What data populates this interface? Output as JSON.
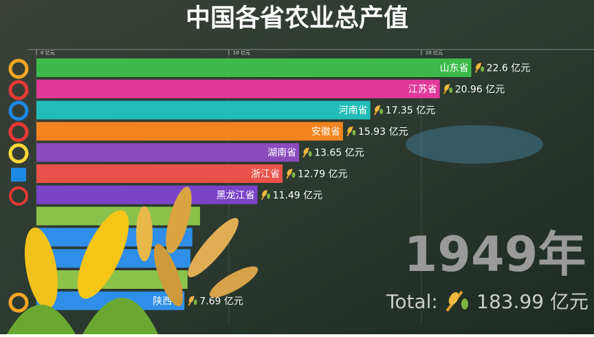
{
  "chart_data": {
    "type": "bar",
    "orientation": "horizontal",
    "title": "中国各省农业总产值",
    "categories": [
      "山东省",
      "江苏省",
      "河南省",
      "安徽省",
      "湖南省",
      "浙江省",
      "黑龙江省",
      null,
      null,
      null,
      null,
      "陕西省"
    ],
    "values": [
      22.6,
      20.96,
      17.35,
      15.93,
      13.65,
      12.79,
      11.49,
      8.5,
      8.1,
      8.0,
      7.85,
      7.69
    ],
    "value_labels": [
      "22.6 亿元",
      "20.96 亿元",
      "17.35 亿元",
      "15.93 亿元",
      "13.65 亿元",
      "12.79 亿元",
      "11.49 亿元",
      null,
      null,
      null,
      null,
      "7.69 亿元"
    ],
    "colors": [
      "#3cb94a",
      "#e0399a",
      "#22bdb8",
      "#f2841f",
      "#8a4bbd",
      "#e8524a",
      "#7a44c9",
      "#8bc34a",
      "#2f8fe8",
      "#2f8fe8",
      "#8bc34a",
      "#2f8fe8"
    ],
    "xlim": [
      0,
      28.9
    ],
    "xticks": [
      {
        "value": 0,
        "label": "0 亿元"
      },
      {
        "value": 10,
        "label": "10 亿元"
      },
      {
        "value": 20,
        "label": "20 亿元"
      }
    ],
    "grid": true,
    "year": "1949年",
    "total_label": "Total:",
    "total": "183.99 亿元"
  }
}
